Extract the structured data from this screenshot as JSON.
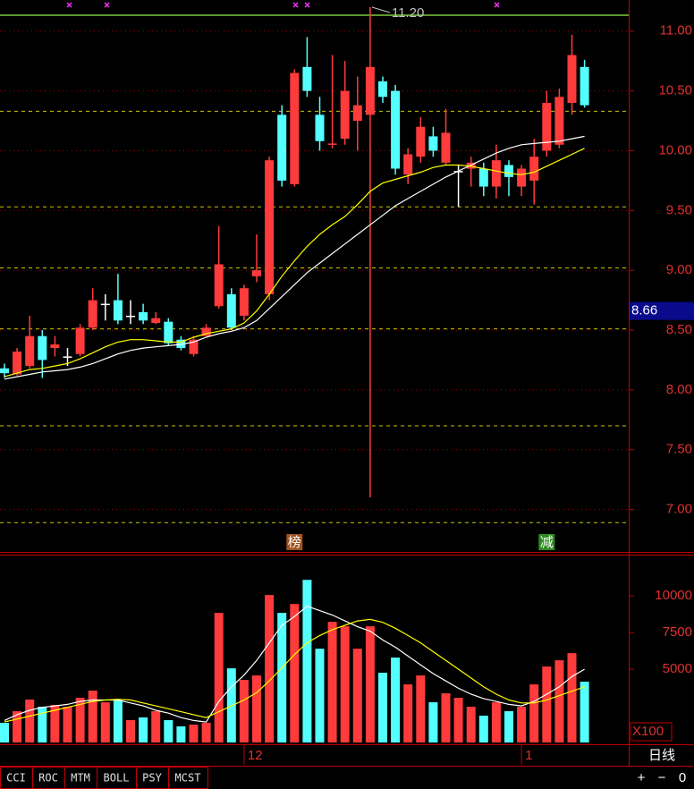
{
  "chart_data": [
    {
      "type": "candlestick",
      "categories": [
        null,
        null,
        null,
        null,
        null,
        null,
        null,
        null,
        null,
        null,
        null,
        null,
        null,
        null,
        null,
        null,
        null,
        null,
        null,
        "12",
        null,
        null,
        null,
        null,
        null,
        null,
        null,
        null,
        null,
        null,
        null,
        null,
        null,
        null,
        null,
        null,
        null,
        null,
        null,
        null,
        null,
        "1",
        null,
        null,
        null,
        null,
        null
      ],
      "open": [
        8.18,
        8.13,
        8.2,
        8.45,
        8.35,
        8.28,
        8.3,
        8.52,
        8.72,
        8.75,
        8.62,
        8.65,
        8.56,
        8.57,
        8.42,
        8.3,
        8.45,
        8.7,
        8.8,
        8.62,
        8.95,
        8.8,
        10.3,
        9.72,
        10.7,
        10.3,
        10.05,
        10.1,
        10.25,
        10.3,
        10.58,
        10.5,
        9.8,
        9.95,
        10.12,
        9.9,
        9.83,
        9.85,
        9.85,
        9.7,
        9.88,
        9.7,
        9.75,
        10.0,
        10.05,
        10.4,
        10.7
      ],
      "high": [
        8.22,
        8.35,
        8.62,
        8.5,
        8.45,
        8.35,
        8.55,
        8.85,
        8.8,
        8.97,
        8.75,
        8.72,
        8.65,
        8.6,
        8.45,
        8.45,
        8.55,
        9.37,
        8.85,
        8.88,
        9.3,
        9.95,
        10.38,
        10.68,
        10.95,
        10.45,
        10.8,
        10.75,
        10.62,
        11.2,
        10.62,
        10.55,
        10.02,
        10.28,
        10.2,
        10.35,
        9.88,
        9.95,
        9.9,
        10.05,
        9.92,
        9.88,
        10.1,
        10.5,
        10.52,
        10.97,
        10.76
      ],
      "low": [
        8.1,
        8.12,
        8.18,
        8.1,
        8.28,
        8.2,
        8.28,
        8.5,
        8.58,
        8.55,
        8.55,
        8.55,
        8.55,
        8.37,
        8.33,
        8.28,
        8.45,
        8.68,
        8.5,
        8.58,
        8.9,
        8.75,
        9.7,
        9.7,
        10.45,
        10.0,
        10.02,
        10.05,
        10.0,
        7.1,
        10.4,
        9.8,
        9.72,
        9.9,
        9.95,
        9.88,
        9.53,
        9.7,
        9.62,
        9.6,
        9.62,
        9.62,
        9.55,
        9.95,
        10.02,
        10.3,
        10.36
      ],
      "close": [
        8.14,
        8.32,
        8.45,
        8.25,
        8.38,
        8.28,
        8.52,
        8.75,
        8.72,
        8.58,
        8.62,
        8.58,
        8.6,
        8.39,
        8.35,
        8.42,
        8.52,
        9.05,
        8.52,
        8.85,
        9.0,
        9.92,
        9.75,
        10.65,
        10.5,
        10.08,
        10.06,
        10.5,
        10.38,
        10.7,
        10.45,
        9.85,
        9.97,
        10.2,
        10.0,
        10.15,
        9.83,
        9.9,
        9.7,
        9.92,
        9.78,
        9.85,
        9.95,
        10.4,
        10.45,
        10.8,
        10.38
      ],
      "up_color": "#ff3b3b",
      "down_color": "#54ffff",
      "flat_color": "#ffffff",
      "ma": [
        {
          "color": "#ffffff",
          "values": [
            8.09,
            8.11,
            8.13,
            8.15,
            8.16,
            8.17,
            8.19,
            8.22,
            8.26,
            8.3,
            8.33,
            8.35,
            8.36,
            8.37,
            8.38,
            8.4,
            8.44,
            8.47,
            8.49,
            8.52,
            8.58,
            8.68,
            8.78,
            8.88,
            8.98,
            9.06,
            9.14,
            9.22,
            9.3,
            9.38,
            9.46,
            9.54,
            9.6,
            9.66,
            9.72,
            9.78,
            9.83,
            9.88,
            9.93,
            9.98,
            10.02,
            10.05,
            10.06,
            10.07,
            10.08,
            10.1,
            10.12
          ]
        },
        {
          "color": "#ffff00",
          "values": [
            8.11,
            8.14,
            8.17,
            8.18,
            8.2,
            8.22,
            8.26,
            8.31,
            8.36,
            8.4,
            8.42,
            8.42,
            8.41,
            8.4,
            8.4,
            8.44,
            8.47,
            8.49,
            8.51,
            8.56,
            8.66,
            8.8,
            8.95,
            9.08,
            9.2,
            9.3,
            9.38,
            9.45,
            9.55,
            9.66,
            9.73,
            9.76,
            9.79,
            9.82,
            9.86,
            9.88,
            9.88,
            9.87,
            9.85,
            9.83,
            9.81,
            9.8,
            9.82,
            9.87,
            9.92,
            9.97,
            10.02
          ]
        }
      ],
      "ylim": [
        6.66,
        11.26
      ],
      "yticks": [
        {
          "value": 7,
          "label": "7.00"
        },
        {
          "value": 7.5,
          "label": "7.50"
        },
        {
          "value": 8,
          "label": "8.00"
        },
        {
          "value": 8.5,
          "label": "8.50"
        },
        {
          "value": 9,
          "label": "9.00"
        },
        {
          "value": 9.5,
          "label": "9.50"
        },
        {
          "value": 10,
          "label": "10.00"
        },
        {
          "value": 10.5,
          "label": "10.50"
        },
        {
          "value": 11,
          "label": "11.00"
        }
      ],
      "levels": [
        10.33,
        9.53,
        9.02,
        8.51,
        7.7,
        6.89
      ],
      "level_color": "#c8c800",
      "high_label": "11.20",
      "price_marker": 8.66,
      "event_labels": [
        null,
        null,
        null,
        null,
        null,
        null,
        null,
        null,
        null,
        null,
        null,
        null,
        null,
        null,
        null,
        null,
        null,
        null,
        null,
        null,
        null,
        null,
        null,
        "榜",
        null,
        null,
        null,
        null,
        null,
        null,
        null,
        null,
        null,
        null,
        null,
        null,
        null,
        null,
        null,
        null,
        null,
        null,
        null,
        "减",
        null,
        null,
        null
      ],
      "event_colors": [
        null,
        null,
        null,
        null,
        null,
        null,
        null,
        null,
        null,
        null,
        null,
        null,
        null,
        null,
        null,
        null,
        null,
        null,
        null,
        null,
        null,
        null,
        null,
        "#a0521e",
        null,
        null,
        null,
        null,
        null,
        null,
        null,
        null,
        null,
        null,
        null,
        null,
        null,
        null,
        null,
        null,
        null,
        null,
        null,
        "#2e8b22",
        null,
        null,
        null
      ]
    },
    {
      "type": "bar",
      "values": [
        1340,
        2135,
        2930,
        2440,
        2560,
        2440,
        3050,
        3540,
        2745,
        2870,
        1525,
        1710,
        2135,
        1525,
        1100,
        1220,
        1340,
        8845,
        5060,
        4270,
        4575,
        10065,
        8845,
        9455,
        11100,
        6400,
        8235,
        7930,
        6400,
        7930,
        4760,
        5795,
        3965,
        4575,
        2745,
        3355,
        3050,
        2440,
        1830,
        2745,
        2135,
        2440,
        3965,
        5185,
        5610,
        6100,
        4150
      ],
      "ma": [
        {
          "color": "#ffffff",
          "values": [
            1500,
            1900,
            2200,
            2400,
            2500,
            2600,
            2800,
            2900,
            2900,
            2900,
            2700,
            2500,
            2200,
            2000,
            1700,
            1500,
            1400,
            2800,
            3800,
            4600,
            5600,
            6800,
            8000,
            8600,
            9300,
            9000,
            8700,
            8300,
            7900,
            7600,
            7000,
            6500,
            5900,
            5300,
            4700,
            4200,
            3700,
            3300,
            3000,
            2800,
            2600,
            2500,
            2800,
            3300,
            3800,
            4500,
            5000
          ]
        },
        {
          "color": "#ffff00",
          "values": [
            1400,
            1600,
            1800,
            2000,
            2200,
            2400,
            2600,
            2800,
            2900,
            2950,
            2900,
            2700,
            2500,
            2300,
            2100,
            1900,
            1700,
            2100,
            2500,
            2900,
            3400,
            4200,
            5100,
            6000,
            6800,
            7300,
            7700,
            8000,
            8300,
            8400,
            8200,
            7800,
            7300,
            6800,
            6200,
            5600,
            5000,
            4400,
            3800,
            3300,
            2900,
            2700,
            2700,
            2900,
            3200,
            3500,
            3800
          ]
        }
      ],
      "ylim": [
        0,
        12700
      ],
      "yticks": [
        5000,
        7500,
        10000
      ],
      "unit_label": "X100"
    }
  ],
  "toolbar": {
    "tabs": [
      "CCI",
      "ROC",
      "MTM",
      "BOLL",
      "PSY",
      "MCST"
    ],
    "timeframe": "日线",
    "controls": [
      "+",
      "−",
      "0"
    ]
  }
}
